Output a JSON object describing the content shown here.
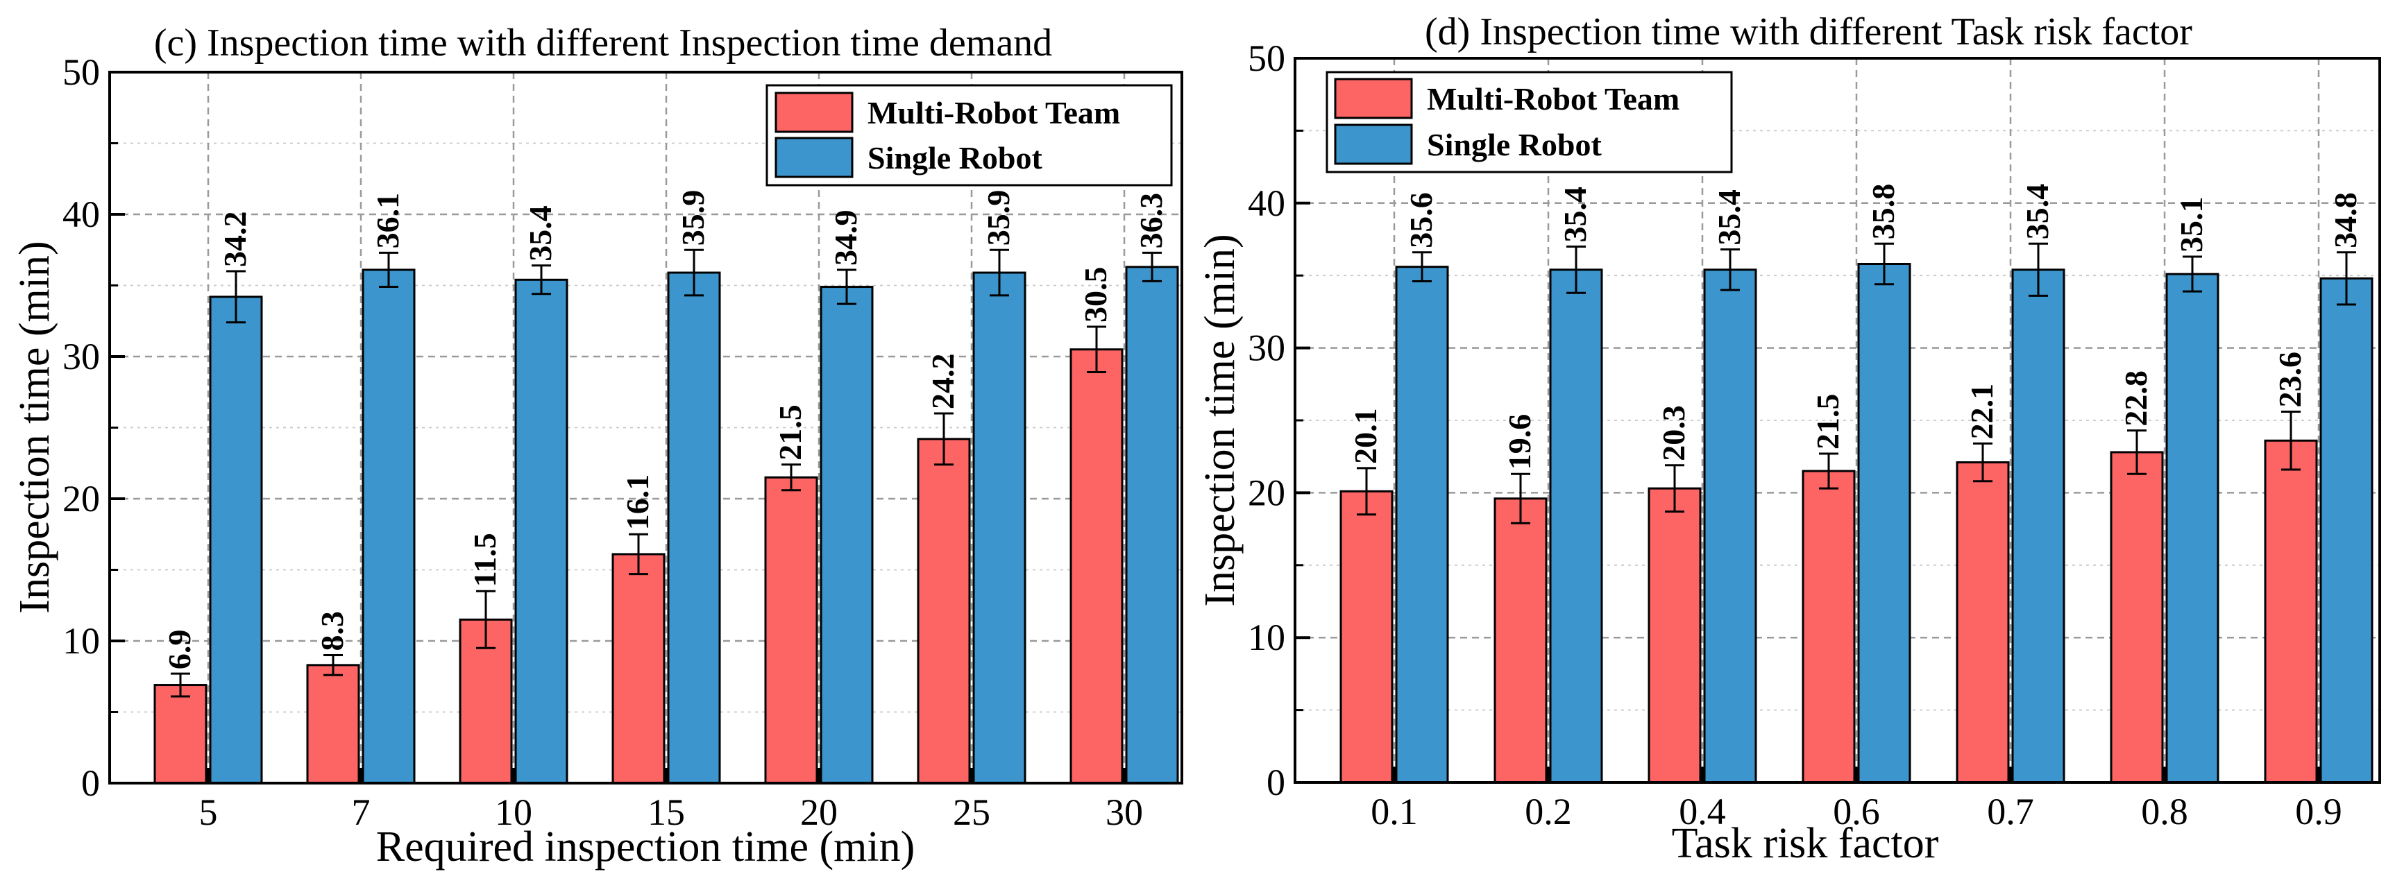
{
  "chart_data": [
    {
      "type": "bar",
      "title": "(c) Inspection time with different Inspection time demand",
      "xlabel": "Required inspection time  (min)",
      "ylabel": "Inspection time (min)",
      "ylim": [
        0,
        50
      ],
      "yticks": [
        0,
        10,
        20,
        30,
        40,
        50
      ],
      "grid": true,
      "legend": "top-right",
      "categories": [
        "5",
        "7",
        "10",
        "15",
        "20",
        "25",
        "30"
      ],
      "series": [
        {
          "name": "Multi-Robot Team",
          "color": "#fd6464",
          "values": [
            6.9,
            8.3,
            11.5,
            16.1,
            21.5,
            24.2,
            30.5
          ],
          "errors": [
            0.8,
            0.7,
            2.0,
            1.4,
            0.9,
            1.8,
            1.6
          ]
        },
        {
          "name": "Single Robot",
          "color": "#3c96cd",
          "values": [
            34.2,
            36.1,
            35.4,
            35.9,
            34.9,
            35.9,
            36.3
          ],
          "errors": [
            1.8,
            1.2,
            1.0,
            1.6,
            1.2,
            1.6,
            1.0
          ]
        }
      ]
    },
    {
      "type": "bar",
      "title": "(d) Inspection time with different Task risk factor",
      "xlabel": "Task risk factor",
      "ylabel": "Inspection time (min)",
      "ylim": [
        0,
        50
      ],
      "yticks": [
        0,
        10,
        20,
        30,
        40,
        50
      ],
      "grid": true,
      "legend": "top-left",
      "categories": [
        "0.1",
        "0.2",
        "0.4",
        "0.6",
        "0.7",
        "0.8",
        "0.9"
      ],
      "series": [
        {
          "name": "Multi-Robot Team",
          "color": "#fd6464",
          "values": [
            20.1,
            19.6,
            20.3,
            21.5,
            22.1,
            22.8,
            23.6
          ],
          "errors": [
            1.6,
            1.7,
            1.6,
            1.2,
            1.3,
            1.5,
            2.0
          ]
        },
        {
          "name": "Single Robot",
          "color": "#3c96cd",
          "values": [
            35.6,
            35.4,
            35.4,
            35.8,
            35.4,
            35.1,
            34.8
          ],
          "errors": [
            1.0,
            1.6,
            1.4,
            1.4,
            1.8,
            1.2,
            1.8
          ]
        }
      ]
    }
  ]
}
